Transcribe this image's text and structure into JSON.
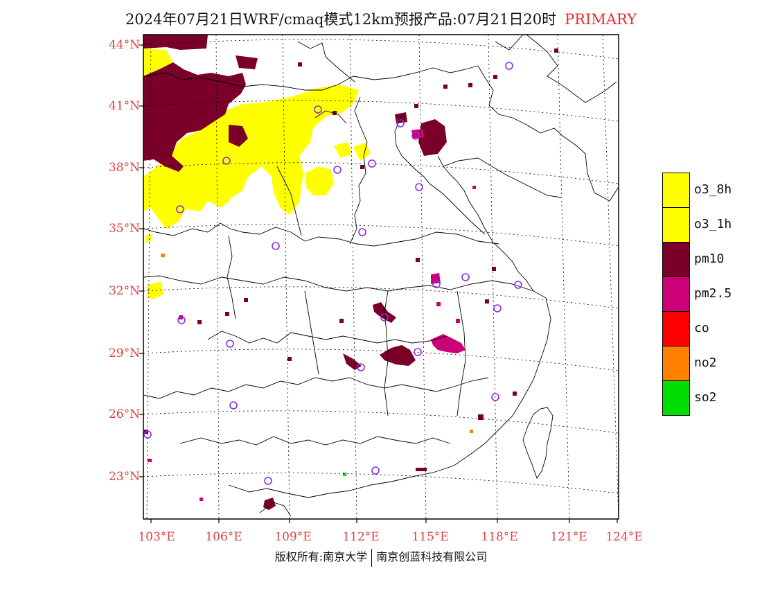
{
  "title": {
    "main": "2024年07月21日WRF/cmaq模式12km预报产品:07月21日20时",
    "tag": "PRIMARY"
  },
  "axes": {
    "lat_labels": [
      "44°N",
      "41°N",
      "38°N",
      "35°N",
      "32°N",
      "29°N",
      "26°N",
      "23°N"
    ],
    "lon_labels": [
      "103°E",
      "106°E",
      "109°E",
      "112°E",
      "115°E",
      "118°E",
      "121°E",
      "124°E"
    ]
  },
  "legend": [
    {
      "label": "o3_8h",
      "color": "#ffff00"
    },
    {
      "label": "o3_1h",
      "color": "#ffff00"
    },
    {
      "label": "pm10",
      "color": "#7a0029"
    },
    {
      "label": "pm2.5",
      "color": "#cc0077"
    },
    {
      "label": "co",
      "color": "#ff0000"
    },
    {
      "label": "no2",
      "color": "#ff7f00"
    },
    {
      "label": "so2",
      "color": "#00dd00"
    }
  ],
  "colors": {
    "o3": "#ffff00",
    "pm10": "#7a0029",
    "pm25": "#cc0077",
    "no2": "#ff7f00",
    "so2": "#00dd00",
    "station": "#8a2be2",
    "label": "#e04040"
  },
  "copyright": {
    "left": "版权所有:南京大学",
    "right": "南京创蓝科技有限公司"
  }
}
